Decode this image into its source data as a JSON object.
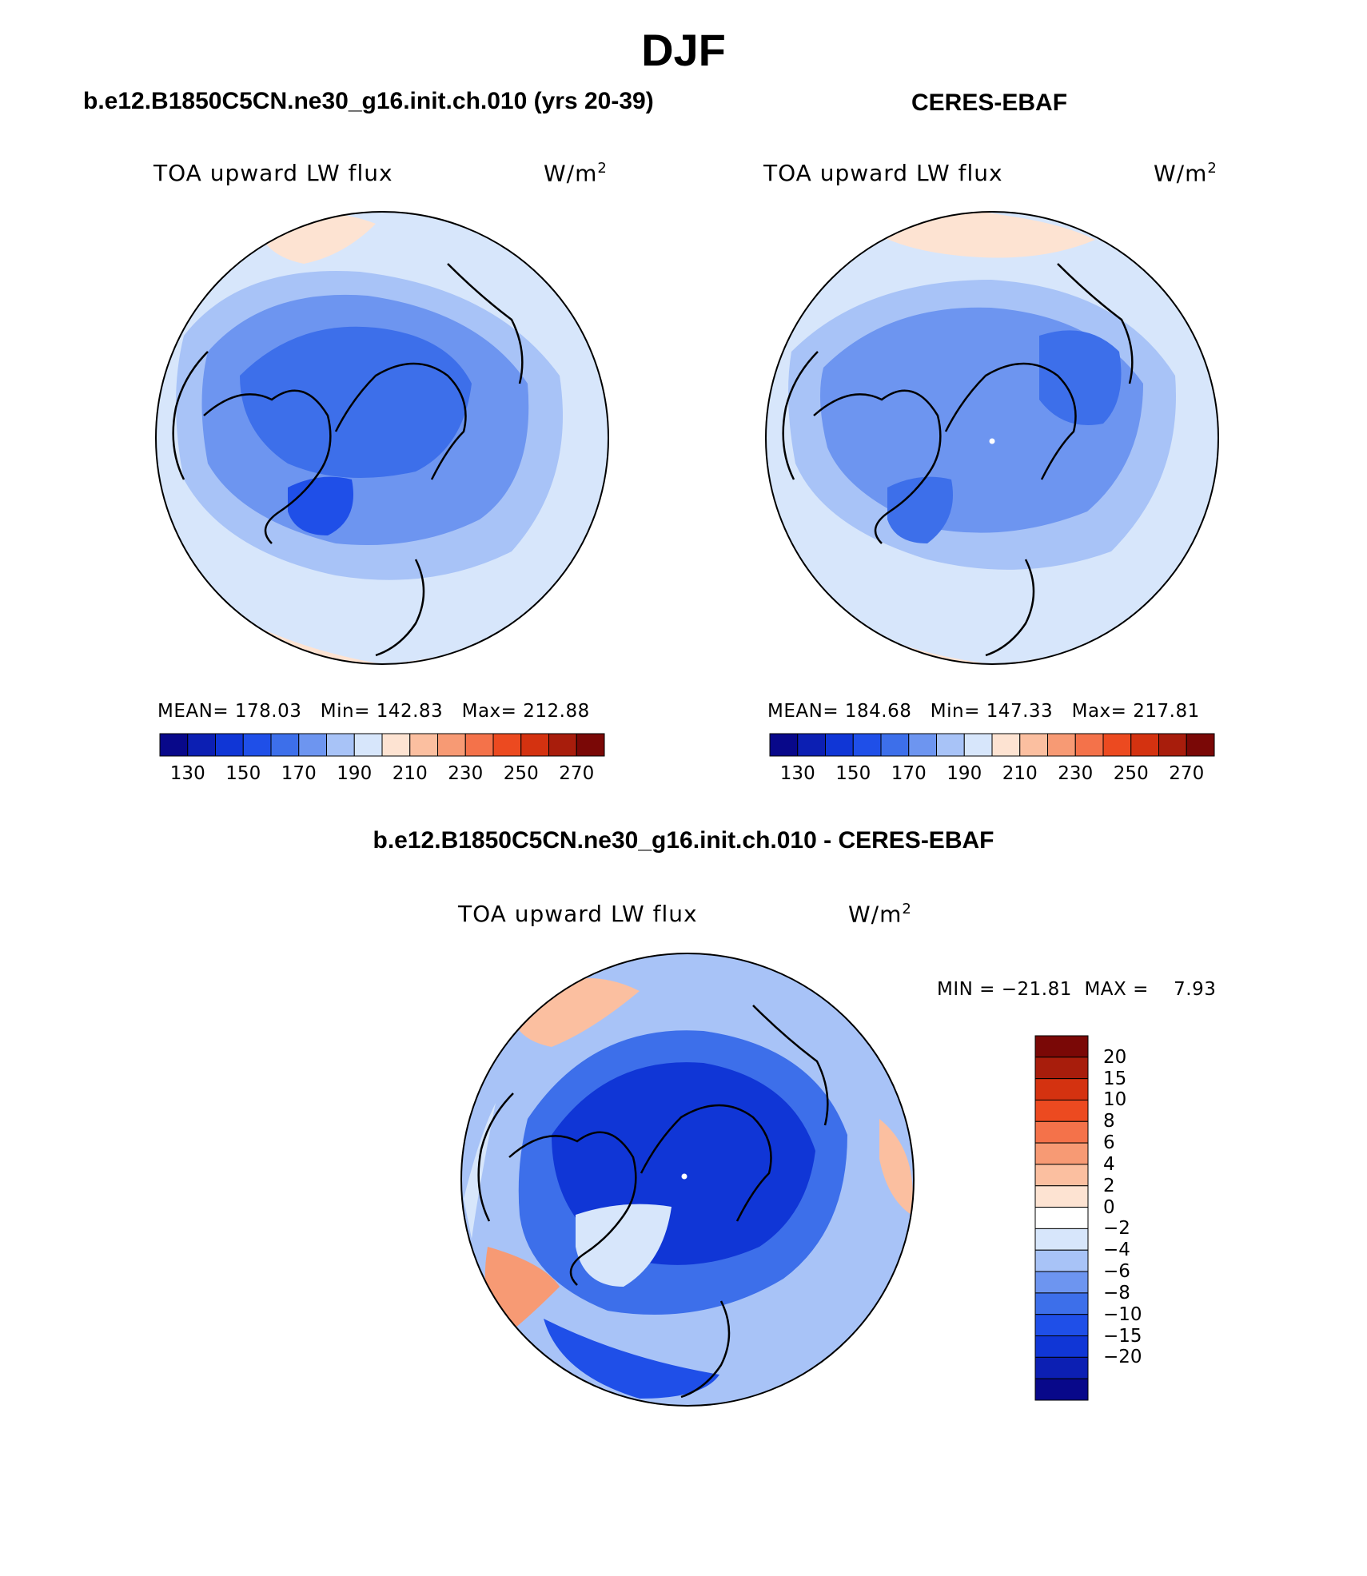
{
  "main_title": "DJF",
  "panels": [
    {
      "title": "b.e12.B1850C5CN.ne30_g16.init.ch.010 (yrs 20-39)",
      "variable": "TOA upward LW flux",
      "units": "W/m",
      "units_sup": "2",
      "stats": "MEAN= 178.03   Min= 142.83   Max= 212.88",
      "colorbar_ticks": [
        "130",
        "150",
        "170",
        "190",
        "210",
        "230",
        "250",
        "270"
      ]
    },
    {
      "title": "CERES-EBAF",
      "variable": "TOA upward LW flux",
      "units": "W/m",
      "units_sup": "2",
      "stats": "MEAN= 184.68   Min= 147.33   Max= 217.81",
      "colorbar_ticks": [
        "130",
        "150",
        "170",
        "190",
        "210",
        "230",
        "250",
        "270"
      ]
    },
    {
      "title": "b.e12.B1850C5CN.ne30_g16.init.ch.010 - CERES-EBAF",
      "variable": "TOA upward LW flux",
      "units": "W/m",
      "units_sup": "2",
      "stats": "MIN = −21.81  MAX =    7.93",
      "colorbar_ticks": [
        "20",
        "15",
        "10",
        "8",
        "6",
        "4",
        "2",
        "0",
        "−2",
        "−4",
        "−6",
        "−8",
        "−10",
        "−15",
        "−20"
      ]
    }
  ],
  "colors": {
    "abs_scale": [
      "#08088a",
      "#0c1fb3",
      "#1036d6",
      "#1f4fe8",
      "#3d6fea",
      "#6d95f0",
      "#a8c3f7",
      "#d7e6fb",
      "#fde3d2",
      "#fbbfa0",
      "#f79a74",
      "#f4724a",
      "#ec4a20",
      "#d43210",
      "#a81d0c",
      "#7a0806"
    ],
    "diff_scale": [
      "#7a0806",
      "#a81d0c",
      "#d43210",
      "#ec4a20",
      "#f4724a",
      "#f79a74",
      "#fbbfa0",
      "#fde3d2",
      "#ffffff",
      "#d7e6fb",
      "#a8c3f7",
      "#6d95f0",
      "#3d6fea",
      "#1f4fe8",
      "#1036d6",
      "#0c1fb3",
      "#08088a"
    ]
  }
}
